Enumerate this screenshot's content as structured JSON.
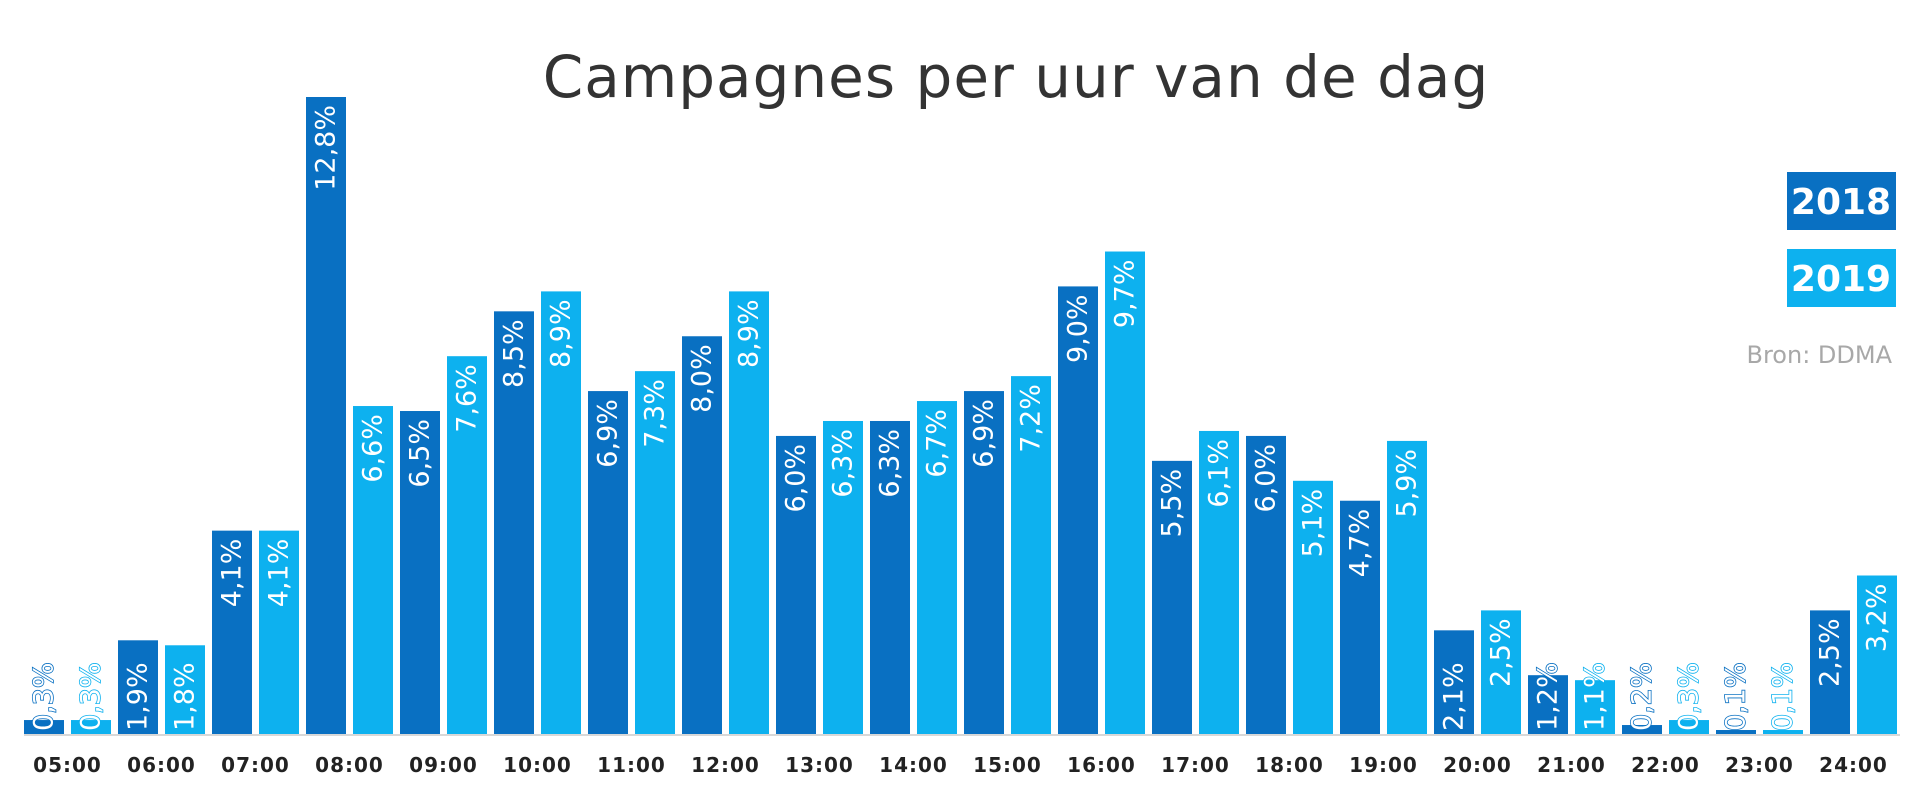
{
  "chart_data": {
    "type": "bar",
    "title": "Campagnes per uur van de dag",
    "xlabel": "",
    "ylabel": "",
    "ylim": [
      0,
      13
    ],
    "categories": [
      "05:00",
      "06:00",
      "07:00",
      "08:00",
      "09:00",
      "10:00",
      "11:00",
      "12:00",
      "13:00",
      "14:00",
      "15:00",
      "16:00",
      "17:00",
      "18:00",
      "19:00",
      "20:00",
      "21:00",
      "22:00",
      "23:00",
      "24:00"
    ],
    "series": [
      {
        "name": "2018",
        "color": "#0970c2",
        "values": [
          0.3,
          1.9,
          4.1,
          12.8,
          6.5,
          8.5,
          6.9,
          8.0,
          6.0,
          6.3,
          6.9,
          9.0,
          5.5,
          6.0,
          4.7,
          2.1,
          1.2,
          0.2,
          0.1,
          2.5
        ],
        "labels": [
          "0,3%",
          "1,9%",
          "4,1%",
          "12,8%",
          "6,5%",
          "8,5%",
          "6,9%",
          "8,0%",
          "6,0%",
          "6,3%",
          "6,9%",
          "9,0%",
          "5,5%",
          "6,0%",
          "4,7%",
          "2,1%",
          "1,2%",
          "0,2%",
          "0,1%",
          "2,5%"
        ]
      },
      {
        "name": "2019",
        "color": "#0db1ef",
        "values": [
          0.3,
          1.8,
          4.1,
          6.6,
          7.6,
          8.9,
          7.3,
          8.9,
          6.3,
          6.7,
          7.2,
          9.7,
          6.1,
          5.1,
          5.9,
          2.5,
          1.1,
          0.3,
          0.1,
          3.2
        ],
        "labels": [
          "0,3%",
          "1,8%",
          "4,1%",
          "6,6%",
          "7,6%",
          "8,9%",
          "7,3%",
          "8,9%",
          "6,3%",
          "6,7%",
          "7,2%",
          "9,7%",
          "6,1%",
          "5,1%",
          "5,9%",
          "2,5%",
          "1,1%",
          "0,3%",
          "0,1%",
          "3,2%"
        ]
      }
    ],
    "legend_position": "top-right",
    "grid": false
  },
  "source": "Bron: DDMA"
}
